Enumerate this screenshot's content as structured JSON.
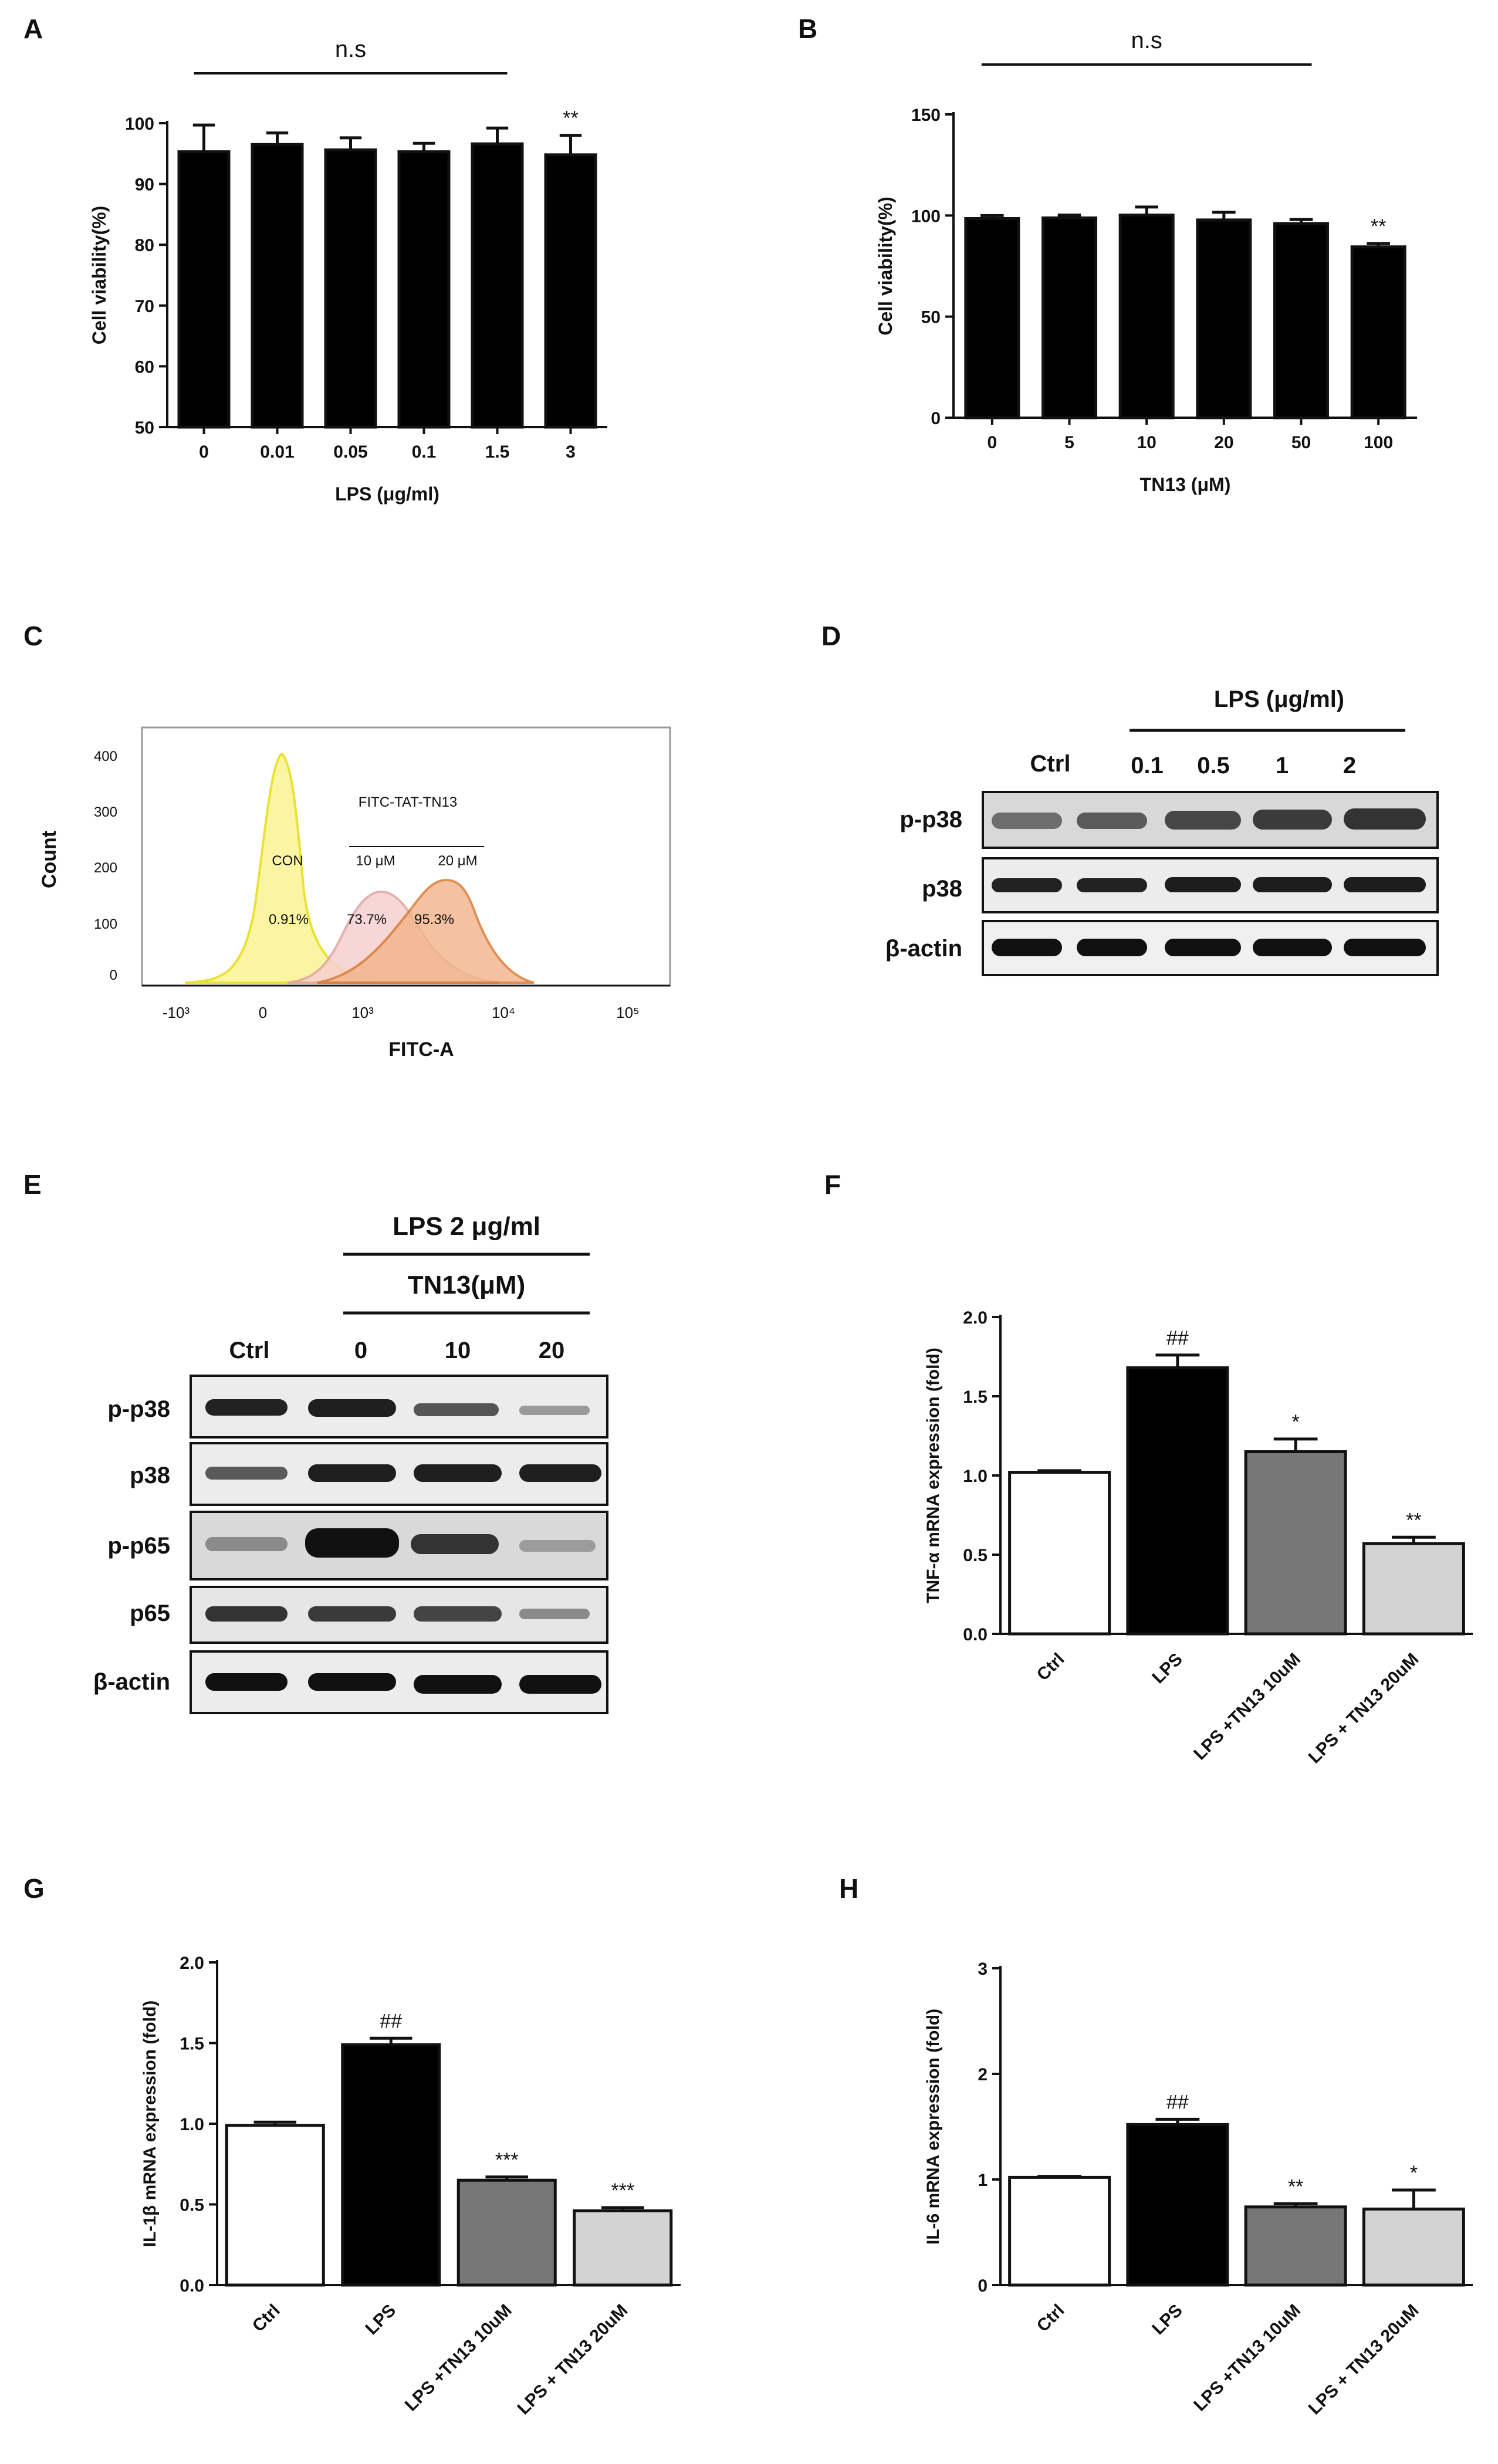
{
  "panels": [
    {
      "id": "A",
      "label": "A"
    },
    {
      "id": "B",
      "label": "B"
    },
    {
      "id": "C",
      "label": "C"
    },
    {
      "id": "D",
      "label": "D"
    },
    {
      "id": "E",
      "label": "E"
    },
    {
      "id": "F",
      "label": "F"
    },
    {
      "id": "G",
      "label": "G"
    },
    {
      "id": "H",
      "label": "H"
    }
  ],
  "chart_data": [
    {
      "panel": "A",
      "type": "bar",
      "categories": [
        "0",
        "0.01",
        "0.05",
        "0.1",
        "1.5",
        "3"
      ],
      "values": [
        95.3,
        96.5,
        95.6,
        95.3,
        96.6,
        94.8
      ],
      "errors": [
        4.4,
        1.9,
        2.0,
        1.4,
        2.6,
        3.2
      ],
      "annotations": [
        "",
        "",
        "",
        "",
        "",
        "**"
      ],
      "bracket": {
        "label": "n.s",
        "from": 0,
        "to": 4
      },
      "xlabel": "LPS (μg/ml)",
      "ylabel": "Cell viability(%)",
      "ylim": [
        50,
        100
      ],
      "yticks": [
        50,
        60,
        70,
        80,
        90,
        100
      ],
      "bar_colors": [
        "#000000",
        "#000000",
        "#000000",
        "#000000",
        "#000000",
        "#000000"
      ],
      "rotate_xticks": false
    },
    {
      "panel": "B",
      "type": "bar",
      "categories": [
        "0",
        "5",
        "10",
        "20",
        "50",
        "100"
      ],
      "values": [
        98.5,
        98.8,
        100.2,
        97.8,
        96.0,
        84.5
      ],
      "errors": [
        1.5,
        1.4,
        4.0,
        3.8,
        2.0,
        1.6
      ],
      "annotations": [
        "",
        "",
        "",
        "",
        "",
        "**"
      ],
      "bracket": {
        "label": "n.s",
        "from": 0,
        "to": 4
      },
      "xlabel": "TN13 (μM)",
      "ylabel": "Cell viability(%)",
      "ylim": [
        0,
        150
      ],
      "yticks": [
        0,
        50,
        100,
        150
      ],
      "bar_colors": [
        "#000000",
        "#000000",
        "#000000",
        "#000000",
        "#000000",
        "#000000"
      ],
      "rotate_xticks": false
    },
    {
      "panel": "F",
      "type": "bar",
      "categories": [
        "Ctrl",
        "LPS",
        "LPS +TN13 10uM",
        "LPS + TN13 20uM"
      ],
      "values": [
        1.02,
        1.68,
        1.15,
        0.57
      ],
      "errors": [
        0.01,
        0.08,
        0.08,
        0.04
      ],
      "annotations": [
        "",
        "##",
        "*",
        "**"
      ],
      "xlabel": "",
      "ylabel": "TNF-α mRNA expression (fold)",
      "ylim": [
        0,
        2.0
      ],
      "yticks": [
        "0.0",
        "0.5",
        "1.0",
        "1.5",
        "2.0"
      ],
      "bar_colors": [
        "#ffffff",
        "#000000",
        "#777777",
        "#d3d3d3"
      ],
      "rotate_xticks": true
    },
    {
      "panel": "G",
      "type": "bar",
      "categories": [
        "Ctrl",
        "LPS",
        "LPS +TN13 10uM",
        "LPS + TN13 20uM"
      ],
      "values": [
        0.99,
        1.49,
        0.65,
        0.46
      ],
      "errors": [
        0.02,
        0.04,
        0.02,
        0.02
      ],
      "annotations": [
        "",
        "##",
        "***",
        "***"
      ],
      "xlabel": "",
      "ylabel": "IL-1β mRNA expression (fold)",
      "ylim": [
        0,
        2.0
      ],
      "yticks": [
        "0.0",
        "0.5",
        "1.0",
        "1.5",
        "2.0"
      ],
      "bar_colors": [
        "#ffffff",
        "#000000",
        "#777777",
        "#d3d3d3"
      ],
      "rotate_xticks": true
    },
    {
      "panel": "H",
      "type": "bar",
      "categories": [
        "Ctrl",
        "LPS",
        "LPS +TN13 10uM",
        "LPS + TN13 20uM"
      ],
      "values": [
        1.02,
        1.52,
        0.74,
        0.72
      ],
      "errors": [
        0.01,
        0.05,
        0.03,
        0.18
      ],
      "annotations": [
        "",
        "##",
        "**",
        "*"
      ],
      "xlabel": "",
      "ylabel": "IL-6 mRNA expression (fold)",
      "ylim": [
        0,
        3
      ],
      "yticks": [
        "0",
        "1",
        "2",
        "3"
      ],
      "bar_colors": [
        "#ffffff",
        "#000000",
        "#777777",
        "#d3d3d3"
      ],
      "rotate_xticks": true
    }
  ],
  "flow": {
    "xlabel": "FITC-A",
    "ylabel": "Count",
    "yticks": [
      "0",
      "100",
      "200",
      "300",
      "400"
    ],
    "xticks": [
      "-10³",
      "0",
      "10³",
      "10⁴",
      "10⁵"
    ],
    "group_title": "FITC-TAT-TN13",
    "histograms": [
      {
        "name": "CON",
        "percent": "0.91%",
        "fill": "#fbf59a",
        "stroke": "#e7de1e"
      },
      {
        "name": "10 μM",
        "percent": "73.7%",
        "fill": "#f6cfcf",
        "stroke": "#e0a3a3"
      },
      {
        "name": "20 μM",
        "percent": "95.3%",
        "fill": "#f2b48a",
        "stroke": "#d9742a"
      }
    ]
  },
  "blotD": {
    "group_label": "LPS (μg/ml)",
    "columns": [
      "Ctrl",
      "0.1",
      "0.5",
      "1",
      "2"
    ],
    "rows": [
      "p-p38",
      "p38",
      "β-actin"
    ]
  },
  "blotE": {
    "group_label": "LPS 2 μg/ml",
    "sub_label": "TN13(μM)",
    "columns": [
      "Ctrl",
      "0",
      "10",
      "20"
    ],
    "rows": [
      "p-p38",
      "p38",
      "p-p65",
      "p65",
      "β-actin"
    ]
  }
}
